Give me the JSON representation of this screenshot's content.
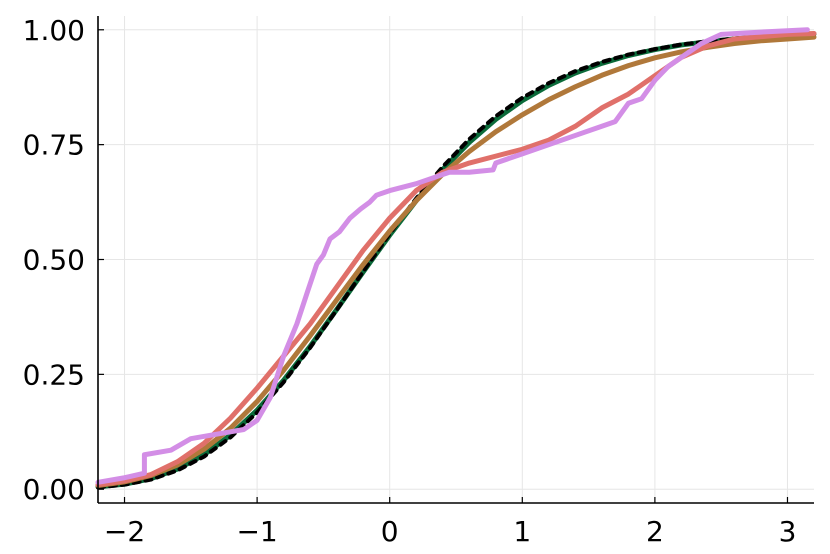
{
  "chart_data": {
    "type": "line",
    "title": "",
    "xlabel": "",
    "ylabel": "",
    "xlim": [
      -2.2,
      3.2
    ],
    "ylim": [
      -0.03,
      1.03
    ],
    "grid": true,
    "legend": "none",
    "xticks": [
      -2,
      -1,
      0,
      1,
      2,
      3
    ],
    "xtick_labels": [
      "−2",
      "−1",
      "0",
      "1",
      "2",
      "3"
    ],
    "yticks": [
      0,
      0.25,
      0.5,
      0.75,
      1.0
    ],
    "ytick_labels": [
      "0.00",
      "0.25",
      "0.50",
      "0.75",
      "1.00"
    ],
    "series": [
      {
        "color": "#0b6b3a",
        "style": "solid",
        "x": [
          -2.2,
          -2.0,
          -1.8,
          -1.6,
          -1.4,
          -1.2,
          -1.0,
          -0.8,
          -0.6,
          -0.4,
          -0.2,
          0.0,
          0.2,
          0.4,
          0.6,
          0.8,
          1.0,
          1.2,
          1.4,
          1.6,
          1.8,
          2.0,
          2.2,
          2.4,
          2.6,
          2.8,
          3.0,
          3.2
        ],
        "y": [
          0.005,
          0.011,
          0.023,
          0.044,
          0.075,
          0.118,
          0.172,
          0.237,
          0.311,
          0.391,
          0.473,
          0.553,
          0.628,
          0.696,
          0.755,
          0.805,
          0.846,
          0.879,
          0.906,
          0.927,
          0.944,
          0.957,
          0.967,
          0.974,
          0.98,
          0.985,
          0.988,
          0.991
        ]
      },
      {
        "color": "#000000",
        "style": "dashed",
        "x": [
          -2.2,
          -2.0,
          -1.8,
          -1.6,
          -1.4,
          -1.2,
          -1.0,
          -0.8,
          -0.6,
          -0.4,
          -0.2,
          0.0,
          0.2,
          0.4,
          0.6,
          0.8,
          1.0,
          1.2,
          1.4,
          1.6,
          1.8,
          2.0,
          2.2,
          2.4,
          2.6,
          2.8,
          3.0,
          3.2
        ],
        "y": [
          0.004,
          0.01,
          0.021,
          0.041,
          0.071,
          0.113,
          0.167,
          0.233,
          0.308,
          0.39,
          0.474,
          0.556,
          0.633,
          0.702,
          0.762,
          0.812,
          0.852,
          0.884,
          0.91,
          0.93,
          0.946,
          0.958,
          0.968,
          0.975,
          0.981,
          0.985,
          0.988,
          0.991
        ]
      },
      {
        "color": "#b0783a",
        "style": "solid",
        "x": [
          -2.2,
          -2.0,
          -1.8,
          -1.6,
          -1.4,
          -1.2,
          -1.0,
          -0.8,
          -0.6,
          -0.4,
          -0.2,
          0.0,
          0.2,
          0.4,
          0.6,
          0.8,
          1.0,
          1.2,
          1.4,
          1.6,
          1.8,
          2.0,
          2.2,
          2.4,
          2.6,
          2.8,
          3.0,
          3.2
        ],
        "y": [
          0.008,
          0.016,
          0.03,
          0.053,
          0.087,
          0.133,
          0.191,
          0.259,
          0.334,
          0.412,
          0.489,
          0.562,
          0.628,
          0.686,
          0.735,
          0.778,
          0.815,
          0.848,
          0.876,
          0.901,
          0.922,
          0.939,
          0.952,
          0.962,
          0.97,
          0.976,
          0.98,
          0.984
        ]
      },
      {
        "color": "#e0706a",
        "style": "solid",
        "x": [
          -2.2,
          -2.0,
          -1.8,
          -1.6,
          -1.4,
          -1.2,
          -1.0,
          -0.8,
          -0.6,
          -0.4,
          -0.2,
          0.0,
          0.2,
          0.4,
          0.6,
          0.8,
          1.0,
          1.2,
          1.4,
          1.6,
          1.8,
          2.0,
          2.2,
          2.4,
          2.6,
          2.8,
          3.0,
          3.2
        ],
        "y": [
          0.01,
          0.018,
          0.032,
          0.06,
          0.1,
          0.155,
          0.22,
          0.29,
          0.36,
          0.44,
          0.52,
          0.59,
          0.65,
          0.69,
          0.71,
          0.725,
          0.74,
          0.76,
          0.79,
          0.83,
          0.86,
          0.9,
          0.94,
          0.965,
          0.98,
          0.985,
          0.99,
          0.992
        ]
      },
      {
        "color": "#d38ee6",
        "style": "solid",
        "x": [
          -2.2,
          -2.0,
          -1.85,
          -1.85,
          -1.65,
          -1.5,
          -1.3,
          -1.1,
          -1.0,
          -0.9,
          -0.8,
          -0.7,
          -0.62,
          -0.55,
          -0.5,
          -0.45,
          -0.38,
          -0.3,
          -0.22,
          -0.15,
          -0.1,
          0.0,
          0.2,
          0.35,
          0.45,
          0.6,
          0.78,
          0.8,
          1.0,
          1.2,
          1.4,
          1.6,
          1.7,
          1.8,
          1.9,
          2.0,
          2.1,
          2.2,
          2.35,
          2.5,
          2.8,
          3.15
        ],
        "y": [
          0.015,
          0.025,
          0.035,
          0.075,
          0.085,
          0.11,
          0.12,
          0.13,
          0.15,
          0.2,
          0.29,
          0.36,
          0.43,
          0.49,
          0.51,
          0.545,
          0.56,
          0.59,
          0.61,
          0.625,
          0.64,
          0.65,
          0.665,
          0.68,
          0.69,
          0.69,
          0.695,
          0.71,
          0.73,
          0.75,
          0.77,
          0.79,
          0.8,
          0.84,
          0.85,
          0.89,
          0.92,
          0.94,
          0.97,
          0.99,
          0.995,
          1.0
        ]
      }
    ]
  }
}
